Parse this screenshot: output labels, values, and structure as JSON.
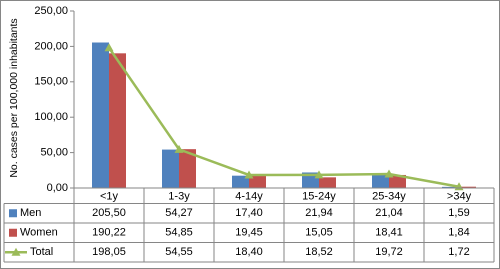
{
  "chart_data": {
    "type": "bar",
    "y_label": "No. cases per 100,000 inhabitants",
    "categories": [
      "<1y",
      "1-3y",
      "4-14y",
      "15-24y",
      "25-34y",
      ">34y"
    ],
    "series": [
      {
        "name": "Men",
        "color": "#4f81bd",
        "mark": "bar",
        "values": [
          205.5,
          54.27,
          17.4,
          21.94,
          21.04,
          1.59
        ],
        "value_labels": [
          "205,50",
          "54,27",
          "17,40",
          "21,94",
          "21,04",
          "1,59"
        ]
      },
      {
        "name": "Women",
        "color": "#c0504d",
        "mark": "bar",
        "values": [
          190.22,
          54.85,
          19.45,
          15.05,
          18.41,
          1.84
        ],
        "value_labels": [
          "190,22",
          "54,85",
          "19,45",
          "15,05",
          "18,41",
          "1,84"
        ]
      },
      {
        "name": "Total",
        "color": "#9bbb59",
        "mark": "line",
        "values": [
          198.05,
          54.55,
          18.4,
          18.52,
          19.72,
          1.72
        ],
        "value_labels": [
          "198,05",
          "54,55",
          "18,40",
          "18,52",
          "19,72",
          "1,72"
        ]
      }
    ],
    "ylim": [
      0,
      250
    ],
    "yticks": [
      {
        "value": 0,
        "label": "0,00"
      },
      {
        "value": 50,
        "label": "50,00"
      },
      {
        "value": 100,
        "label": "100,00"
      },
      {
        "value": 150,
        "label": "150,00"
      },
      {
        "value": 200,
        "label": "200,00"
      },
      {
        "value": 250,
        "label": "250,00"
      }
    ]
  }
}
